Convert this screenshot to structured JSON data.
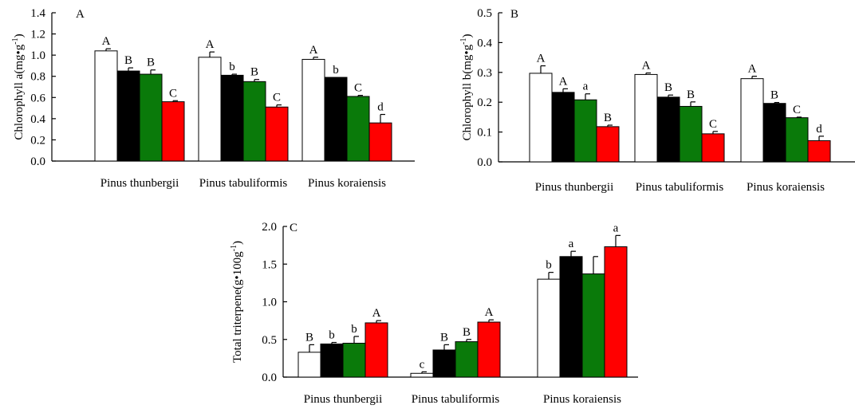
{
  "chart_data": [
    {
      "type": "bar",
      "panel_label": "A",
      "ylabel": "Chlorophyll a(mg•g-1)",
      "ylabel_parts": [
        "Chlorophyll a(mg•g",
        "-1",
        ")"
      ],
      "ylim": [
        0,
        1.4
      ],
      "yticks": [
        "0.0",
        "0.2",
        "0.4",
        "0.6",
        "0.8",
        "1.0",
        "1.2",
        "1.4"
      ],
      "categories": [
        "Pinus thunbergii",
        "Pinus tabuliformis",
        "Pinus koraiensis"
      ],
      "series_colors": [
        "#ffffff",
        "#000000",
        "#0a7a0a",
        "#ff0000"
      ],
      "groups": [
        {
          "values": [
            1.04,
            0.85,
            0.82,
            0.56
          ],
          "errors": [
            0.02,
            0.03,
            0.04,
            0.01
          ],
          "labels": [
            "A",
            "B",
            "B",
            "C"
          ]
        },
        {
          "values": [
            0.98,
            0.81,
            0.75,
            0.51
          ],
          "errors": [
            0.05,
            0.01,
            0.02,
            0.02
          ],
          "labels": [
            "A",
            "b",
            "B",
            "C"
          ]
        },
        {
          "values": [
            0.96,
            0.79,
            0.61,
            0.36
          ],
          "errors": [
            0.02,
            0.0,
            0.01,
            0.08
          ],
          "labels": [
            "A",
            "b",
            "C",
            "d"
          ]
        }
      ]
    },
    {
      "type": "bar",
      "panel_label": "B",
      "ylabel": "Chlorophyll b(mg•g-1)",
      "ylabel_parts": [
        "Chlorophyll b(mg•g",
        "-1",
        ")"
      ],
      "ylim": [
        0,
        0.5
      ],
      "yticks": [
        "0.0",
        "0.1",
        "0.2",
        "0.3",
        "0.4",
        "0.5"
      ],
      "categories": [
        "Pinus thunbergii",
        "Pinus tabuliformis",
        "Pinus koraiensis"
      ],
      "series_colors": [
        "#ffffff",
        "#000000",
        "#0a7a0a",
        "#ff0000"
      ],
      "groups": [
        {
          "values": [
            0.297,
            0.233,
            0.208,
            0.118
          ],
          "errors": [
            0.025,
            0.012,
            0.02,
            0.005
          ],
          "labels": [
            "A",
            "A",
            "a",
            "B"
          ]
        },
        {
          "values": [
            0.293,
            0.217,
            0.186,
            0.094
          ],
          "errors": [
            0.005,
            0.007,
            0.015,
            0.008
          ],
          "labels": [
            "A",
            "B",
            "B",
            "C"
          ]
        },
        {
          "values": [
            0.279,
            0.196,
            0.148,
            0.071
          ],
          "errors": [
            0.008,
            0.003,
            0.002,
            0.015
          ],
          "labels": [
            "A",
            "B",
            "C",
            "d"
          ]
        }
      ]
    },
    {
      "type": "bar",
      "panel_label": "C",
      "ylabel": "Total triterpene(g•100g-1)",
      "ylabel_parts": [
        "Total triterpene(g•100g",
        "-1",
        ")"
      ],
      "ylim": [
        0,
        2.0
      ],
      "yticks": [
        "0.0",
        "0.5",
        "1.0",
        "1.5",
        "2.0"
      ],
      "categories": [
        "Pinus thunbergii",
        "Pinus tabuliformis",
        "Pinus koraiensis"
      ],
      "series_colors": [
        "#ffffff",
        "#000000",
        "#0a7a0a",
        "#ff0000"
      ],
      "groups": [
        {
          "values": [
            0.33,
            0.44,
            0.45,
            0.72
          ],
          "errors": [
            0.1,
            0.02,
            0.09,
            0.03
          ],
          "labels": [
            "B",
            "b",
            "b",
            "A"
          ]
        },
        {
          "values": [
            0.05,
            0.36,
            0.47,
            0.73
          ],
          "errors": [
            0.02,
            0.07,
            0.03,
            0.03
          ],
          "labels": [
            "c",
            "B",
            "B",
            "A"
          ]
        },
        {
          "values": [
            1.3,
            1.6,
            1.37,
            1.73
          ],
          "errors": [
            0.09,
            0.07,
            0.23,
            0.15
          ],
          "labels": [
            "b",
            "a",
            "",
            "a"
          ]
        }
      ]
    }
  ]
}
